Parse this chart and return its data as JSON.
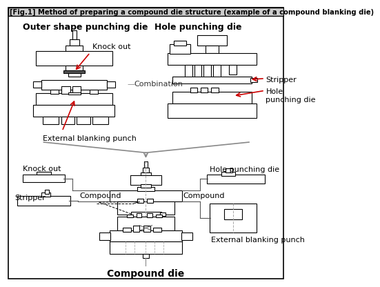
{
  "title": "[Fig.1] Method of preparing a compound die structure (example of a compound blanking die)",
  "bg_color": "#ffffff",
  "border_color": "#000000",
  "gray_color": "#888888",
  "red_color": "#cc0000",
  "title_bg": "#cccccc",
  "top_left_label": "Outer shape punching die",
  "top_right_label": "Hole punching die",
  "combination_label": "Combination",
  "bottom_center_label": "Compound die",
  "knock_out_top": "Knock out",
  "external_blanking_punch_top": "External blanking punch",
  "stripper_top": "Stripper",
  "hole_punching_die_top": "Hole\npunching die",
  "knock_out_bottom": "Knock out",
  "stripper_bottom": "Stripper",
  "compound_left": "Compound",
  "compound_right": "Compound",
  "hole_punching_die_bottom": "Hole punching die",
  "external_blanking_punch_bottom": "External blanking punch"
}
